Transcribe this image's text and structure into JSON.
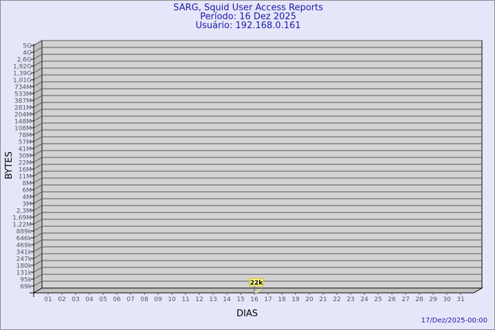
{
  "chart_data": {
    "type": "bar",
    "title": "SARG, Squid User Access Reports",
    "subtitle1": "Período: 16 Dez 2025",
    "subtitle2": "Usuário: 192.168.0.161",
    "xlabel": "DIAS",
    "ylabel": "BYTES",
    "y_scale": "log",
    "categories": [
      "01",
      "02",
      "03",
      "04",
      "05",
      "06",
      "07",
      "08",
      "09",
      "10",
      "11",
      "12",
      "13",
      "14",
      "15",
      "16",
      "17",
      "18",
      "19",
      "20",
      "21",
      "22",
      "23",
      "24",
      "25",
      "26",
      "27",
      "28",
      "29",
      "30",
      "31"
    ],
    "y_ticks": [
      "5G",
      "4G",
      "2,6G",
      "1,92G",
      "1,39G",
      "1,01G",
      "734M",
      "533M",
      "387M",
      "281M",
      "204M",
      "148M",
      "108M",
      "78M",
      "57M",
      "41M",
      "30M",
      "22M",
      "16M",
      "11M",
      "8M",
      "6M",
      "4M",
      "3M",
      "2,3M",
      "1,69M",
      "1,22M",
      "889k",
      "646k",
      "469k",
      "341k",
      "247k",
      "180k",
      "131k",
      "95k",
      "69k"
    ],
    "series": [
      {
        "values": [
          {
            "x": "16",
            "y": 22000,
            "label": "22k"
          }
        ]
      }
    ],
    "grid": true,
    "colors": {
      "wall": "#d3d3d3",
      "side": "#c0c0c0",
      "bar": "#f5e08a",
      "label_bg": "#ffff99",
      "title": "#1a1aa6"
    }
  },
  "footer": {
    "timestamp": "17/Dez/2025-00:00"
  }
}
